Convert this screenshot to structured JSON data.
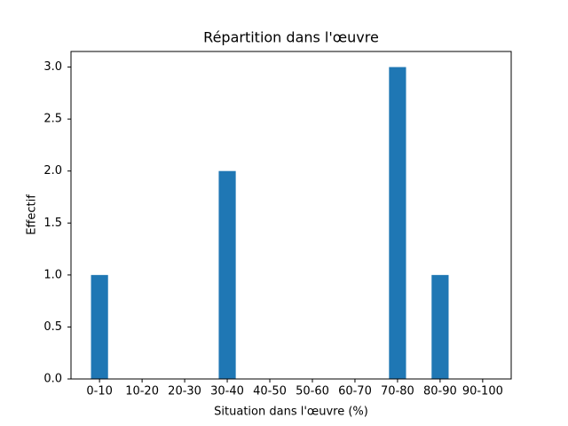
{
  "chart_data": {
    "type": "bar",
    "title": "Répartition dans l'œuvre",
    "x_label": "Situation dans l'œuvre (%)",
    "y_label": "Effectif",
    "categories": [
      "0-10",
      "10-20",
      "20-30",
      "30-40",
      "40-50",
      "50-60",
      "60-70",
      "70-80",
      "80-90",
      "90-100"
    ],
    "values": [
      1,
      0,
      0,
      2,
      0,
      0,
      0,
      3,
      1,
      0
    ],
    "color": "#1f77b4",
    "ylim": [
      0,
      3.15
    ],
    "yticks": [
      {
        "value": 0,
        "label": "0.0"
      },
      0.5,
      {
        "value": 1,
        "label": "1.0"
      },
      1.5,
      {
        "value": 2,
        "label": "2.0"
      },
      2.5,
      {
        "value": 3,
        "label": "3.0"
      }
    ],
    "grid": false
  }
}
